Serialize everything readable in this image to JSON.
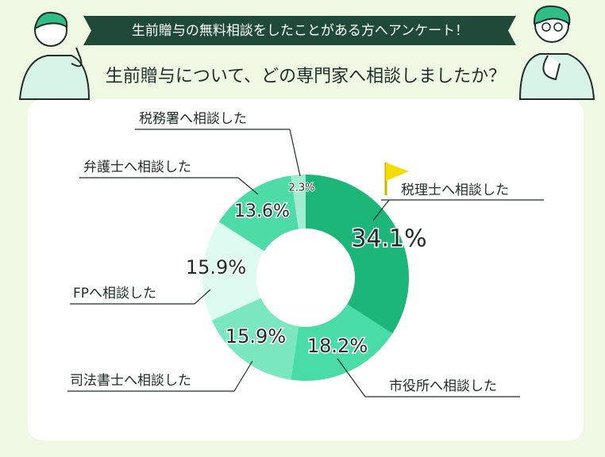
{
  "chart_data": {
    "type": "donut",
    "title": "生前贈与の無料相談をしたことがある方へアンケート！",
    "subtitle": "生前贈与について、どの専門家へ相談しましたか？",
    "categories": [
      "税理士へ相談した",
      "市役所へ相談した",
      "司法書士へ相談した",
      "FPへ相談した",
      "弁護士へ相談した",
      "税務署へ相談した"
    ],
    "values": [
      34.1,
      18.2,
      15.9,
      15.9,
      13.6,
      2.3
    ],
    "value_labels": [
      "34.1%",
      "18.2%",
      "15.9%",
      "15.9%",
      "13.6%",
      "2.3%"
    ],
    "colors": [
      "#1cb679",
      "#4adca6",
      "#7ae7bf",
      "#defbf1",
      "#4ddba6",
      "#a2edd1"
    ]
  }
}
